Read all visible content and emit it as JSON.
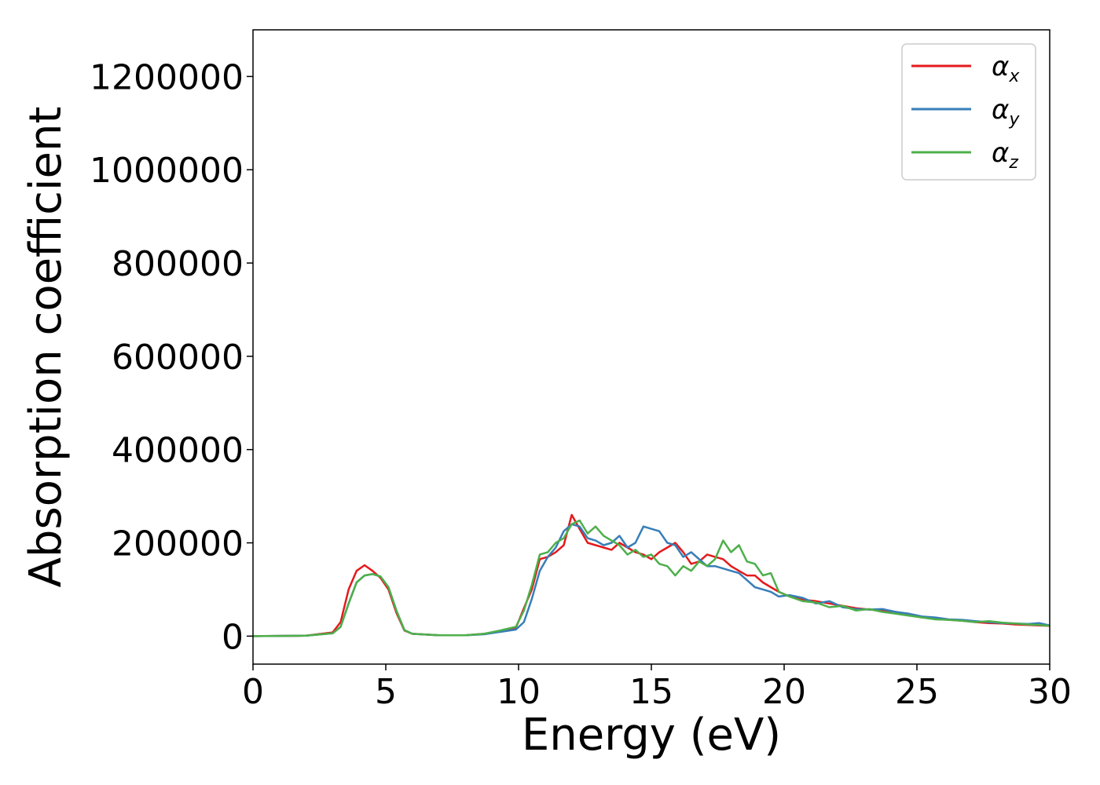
{
  "chart_data": {
    "type": "line",
    "title": "",
    "xlabel": "Energy (eV)",
    "ylabel": "Absorption coefficient",
    "xlim": [
      0,
      30
    ],
    "ylim": [
      -60000,
      1300000
    ],
    "xticks": [
      0,
      5,
      10,
      15,
      20,
      25,
      30
    ],
    "xtick_labels": [
      "0",
      "5",
      "10",
      "15",
      "20",
      "25",
      "30"
    ],
    "yticks": [
      0,
      200000,
      400000,
      600000,
      800000,
      1000000,
      1200000
    ],
    "ytick_labels": [
      "0",
      "200000",
      "400000",
      "600000",
      "800000",
      "1000000",
      "1200000"
    ],
    "grid": false,
    "legend_position": "top-right",
    "series": [
      {
        "name": "α",
        "subscript": "x",
        "color": "#e41a1c",
        "x": [
          0,
          2,
          3,
          3.3,
          3.6,
          3.9,
          4.2,
          4.5,
          4.8,
          5.1,
          5.4,
          5.7,
          6,
          7,
          8,
          8.7,
          9.3,
          9.9,
          10.2,
          10.5,
          10.8,
          11.1,
          11.4,
          11.7,
          12.0,
          12.3,
          12.6,
          12.9,
          13.2,
          13.5,
          13.8,
          14.1,
          14.4,
          14.7,
          15.0,
          15.3,
          15.6,
          15.9,
          16.2,
          16.5,
          16.8,
          17.1,
          17.4,
          17.7,
          18.0,
          18.3,
          18.6,
          18.9,
          19.2,
          19.5,
          19.8,
          20.2,
          20.7,
          21.2,
          21.7,
          22.2,
          22.7,
          23.2,
          23.7,
          24.2,
          24.7,
          25.2,
          25.7,
          26.2,
          26.7,
          27.2,
          27.7,
          28.2,
          28.7,
          29.2,
          29.6,
          30
        ],
        "y": [
          0,
          1000,
          8000,
          30000,
          100000,
          140000,
          152000,
          140000,
          125000,
          100000,
          50000,
          12000,
          5000,
          2000,
          2000,
          5000,
          10000,
          18000,
          60000,
          100000,
          165000,
          170000,
          180000,
          195000,
          260000,
          230000,
          200000,
          195000,
          190000,
          185000,
          200000,
          190000,
          180000,
          175000,
          165000,
          180000,
          190000,
          200000,
          180000,
          155000,
          160000,
          175000,
          170000,
          165000,
          150000,
          140000,
          130000,
          130000,
          115000,
          105000,
          95000,
          85000,
          78000,
          75000,
          70000,
          65000,
          60000,
          57000,
          55000,
          52000,
          45000,
          40000,
          38000,
          35000,
          33000,
          30000,
          28000,
          27000,
          25000,
          24000,
          23000,
          22000
        ]
      },
      {
        "name": "α",
        "subscript": "y",
        "color": "#377eb8",
        "x": [
          0,
          2,
          3,
          3.3,
          3.6,
          3.9,
          4.2,
          4.5,
          4.8,
          5.1,
          5.4,
          5.7,
          6,
          7,
          8,
          8.7,
          9.3,
          9.9,
          10.2,
          10.5,
          10.8,
          11.1,
          11.4,
          11.7,
          12.0,
          12.3,
          12.6,
          12.9,
          13.2,
          13.5,
          13.8,
          14.1,
          14.4,
          14.7,
          15.0,
          15.3,
          15.6,
          15.9,
          16.2,
          16.5,
          16.8,
          17.1,
          17.4,
          17.7,
          18.0,
          18.3,
          18.6,
          18.9,
          19.2,
          19.5,
          19.8,
          20.2,
          20.7,
          21.2,
          21.7,
          22.2,
          22.7,
          23.2,
          23.7,
          24.2,
          24.7,
          25.2,
          25.7,
          26.2,
          26.7,
          27.2,
          27.7,
          28.2,
          28.7,
          29.2,
          29.6,
          30
        ],
        "y": [
          0,
          1000,
          6000,
          20000,
          70000,
          115000,
          130000,
          133000,
          128000,
          105000,
          55000,
          13000,
          5000,
          2000,
          2000,
          4000,
          9000,
          14000,
          30000,
          80000,
          140000,
          170000,
          190000,
          225000,
          240000,
          235000,
          210000,
          205000,
          195000,
          200000,
          215000,
          190000,
          200000,
          235000,
          230000,
          225000,
          200000,
          195000,
          170000,
          180000,
          165000,
          150000,
          150000,
          145000,
          140000,
          135000,
          120000,
          105000,
          100000,
          95000,
          85000,
          88000,
          82000,
          70000,
          75000,
          62000,
          58000,
          57000,
          58000,
          52000,
          48000,
          42000,
          40000,
          36000,
          35000,
          32000,
          30000,
          28000,
          27000,
          26000,
          28000,
          23000
        ]
      },
      {
        "name": "α",
        "subscript": "z",
        "color": "#4daf4a",
        "x": [
          0,
          2,
          3,
          3.3,
          3.6,
          3.9,
          4.2,
          4.5,
          4.8,
          5.1,
          5.4,
          5.7,
          6,
          7,
          8,
          8.7,
          9.3,
          9.9,
          10.2,
          10.5,
          10.8,
          11.1,
          11.4,
          11.7,
          12.0,
          12.3,
          12.6,
          12.9,
          13.2,
          13.5,
          13.8,
          14.1,
          14.4,
          14.7,
          15.0,
          15.3,
          15.6,
          15.9,
          16.2,
          16.5,
          16.8,
          17.1,
          17.4,
          17.7,
          18.0,
          18.3,
          18.6,
          18.9,
          19.2,
          19.5,
          19.8,
          20.2,
          20.7,
          21.2,
          21.7,
          22.2,
          22.7,
          23.2,
          23.7,
          24.2,
          24.7,
          25.2,
          25.7,
          26.2,
          26.7,
          27.2,
          27.7,
          28.2,
          28.7,
          29.2,
          29.6,
          30
        ],
        "y": [
          0,
          1000,
          6000,
          20000,
          70000,
          115000,
          130000,
          133000,
          128000,
          105000,
          55000,
          13000,
          5000,
          2000,
          2000,
          5000,
          12000,
          20000,
          55000,
          110000,
          175000,
          180000,
          200000,
          210000,
          240000,
          248000,
          220000,
          235000,
          215000,
          205000,
          195000,
          175000,
          185000,
          170000,
          175000,
          155000,
          150000,
          130000,
          150000,
          140000,
          160000,
          150000,
          165000,
          205000,
          180000,
          195000,
          160000,
          155000,
          130000,
          135000,
          95000,
          85000,
          75000,
          72000,
          62000,
          65000,
          55000,
          58000,
          52000,
          48000,
          44000,
          40000,
          36000,
          35000,
          33000,
          30000,
          32000,
          29000,
          27000,
          25000,
          24000,
          22000
        ]
      }
    ]
  }
}
